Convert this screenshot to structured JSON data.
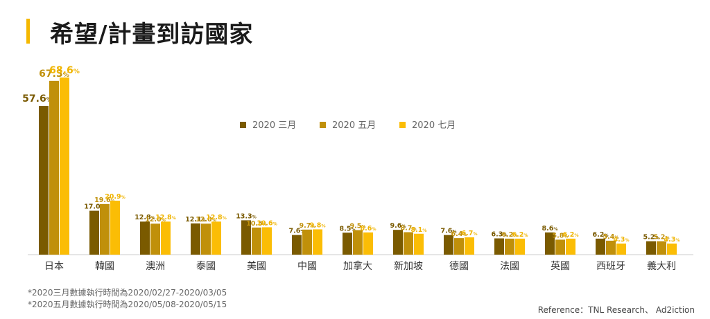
{
  "title": "希望/計畫到訪國家",
  "notes": [
    "*2020三月數據執行時間為2020/02/27-2020/03/05",
    "*2020五月數據執行時間為2020/05/08-2020/05/15"
  ],
  "reference": "Reference：TNL Research、 Ad2iction",
  "chart_data": {
    "type": "bar",
    "title": "希望/計畫到訪國家",
    "categories": [
      "日本",
      "韓國",
      "澳洲",
      "泰國",
      "美國",
      "中國",
      "加拿大",
      "新加坡",
      "德國",
      "法國",
      "英國",
      "西班牙",
      "義大利"
    ],
    "series": [
      {
        "name": "2020 三月",
        "color": "#7a5a00",
        "values": [
          57.6,
          17.0,
          12.8,
          12.1,
          13.3,
          7.6,
          8.5,
          9.6,
          7.6,
          6.3,
          8.6,
          6.2,
          5.2
        ]
      },
      {
        "name": "2020 五月",
        "color": "#c0900a",
        "values": [
          67.3,
          19.6,
          12.0,
          12.0,
          10.5,
          9.7,
          9.5,
          8.7,
          6.4,
          6.2,
          5.8,
          5.4,
          5.2
        ]
      },
      {
        "name": "2020 七月",
        "color": "#fbbd05",
        "values": [
          68.6,
          20.9,
          12.8,
          12.8,
          10.6,
          9.8,
          8.6,
          8.1,
          6.7,
          6.2,
          6.2,
          4.3,
          4.3
        ]
      }
    ],
    "unit": "%",
    "legend": "top-center",
    "grid": false,
    "ylim": [
      0,
      70
    ]
  }
}
